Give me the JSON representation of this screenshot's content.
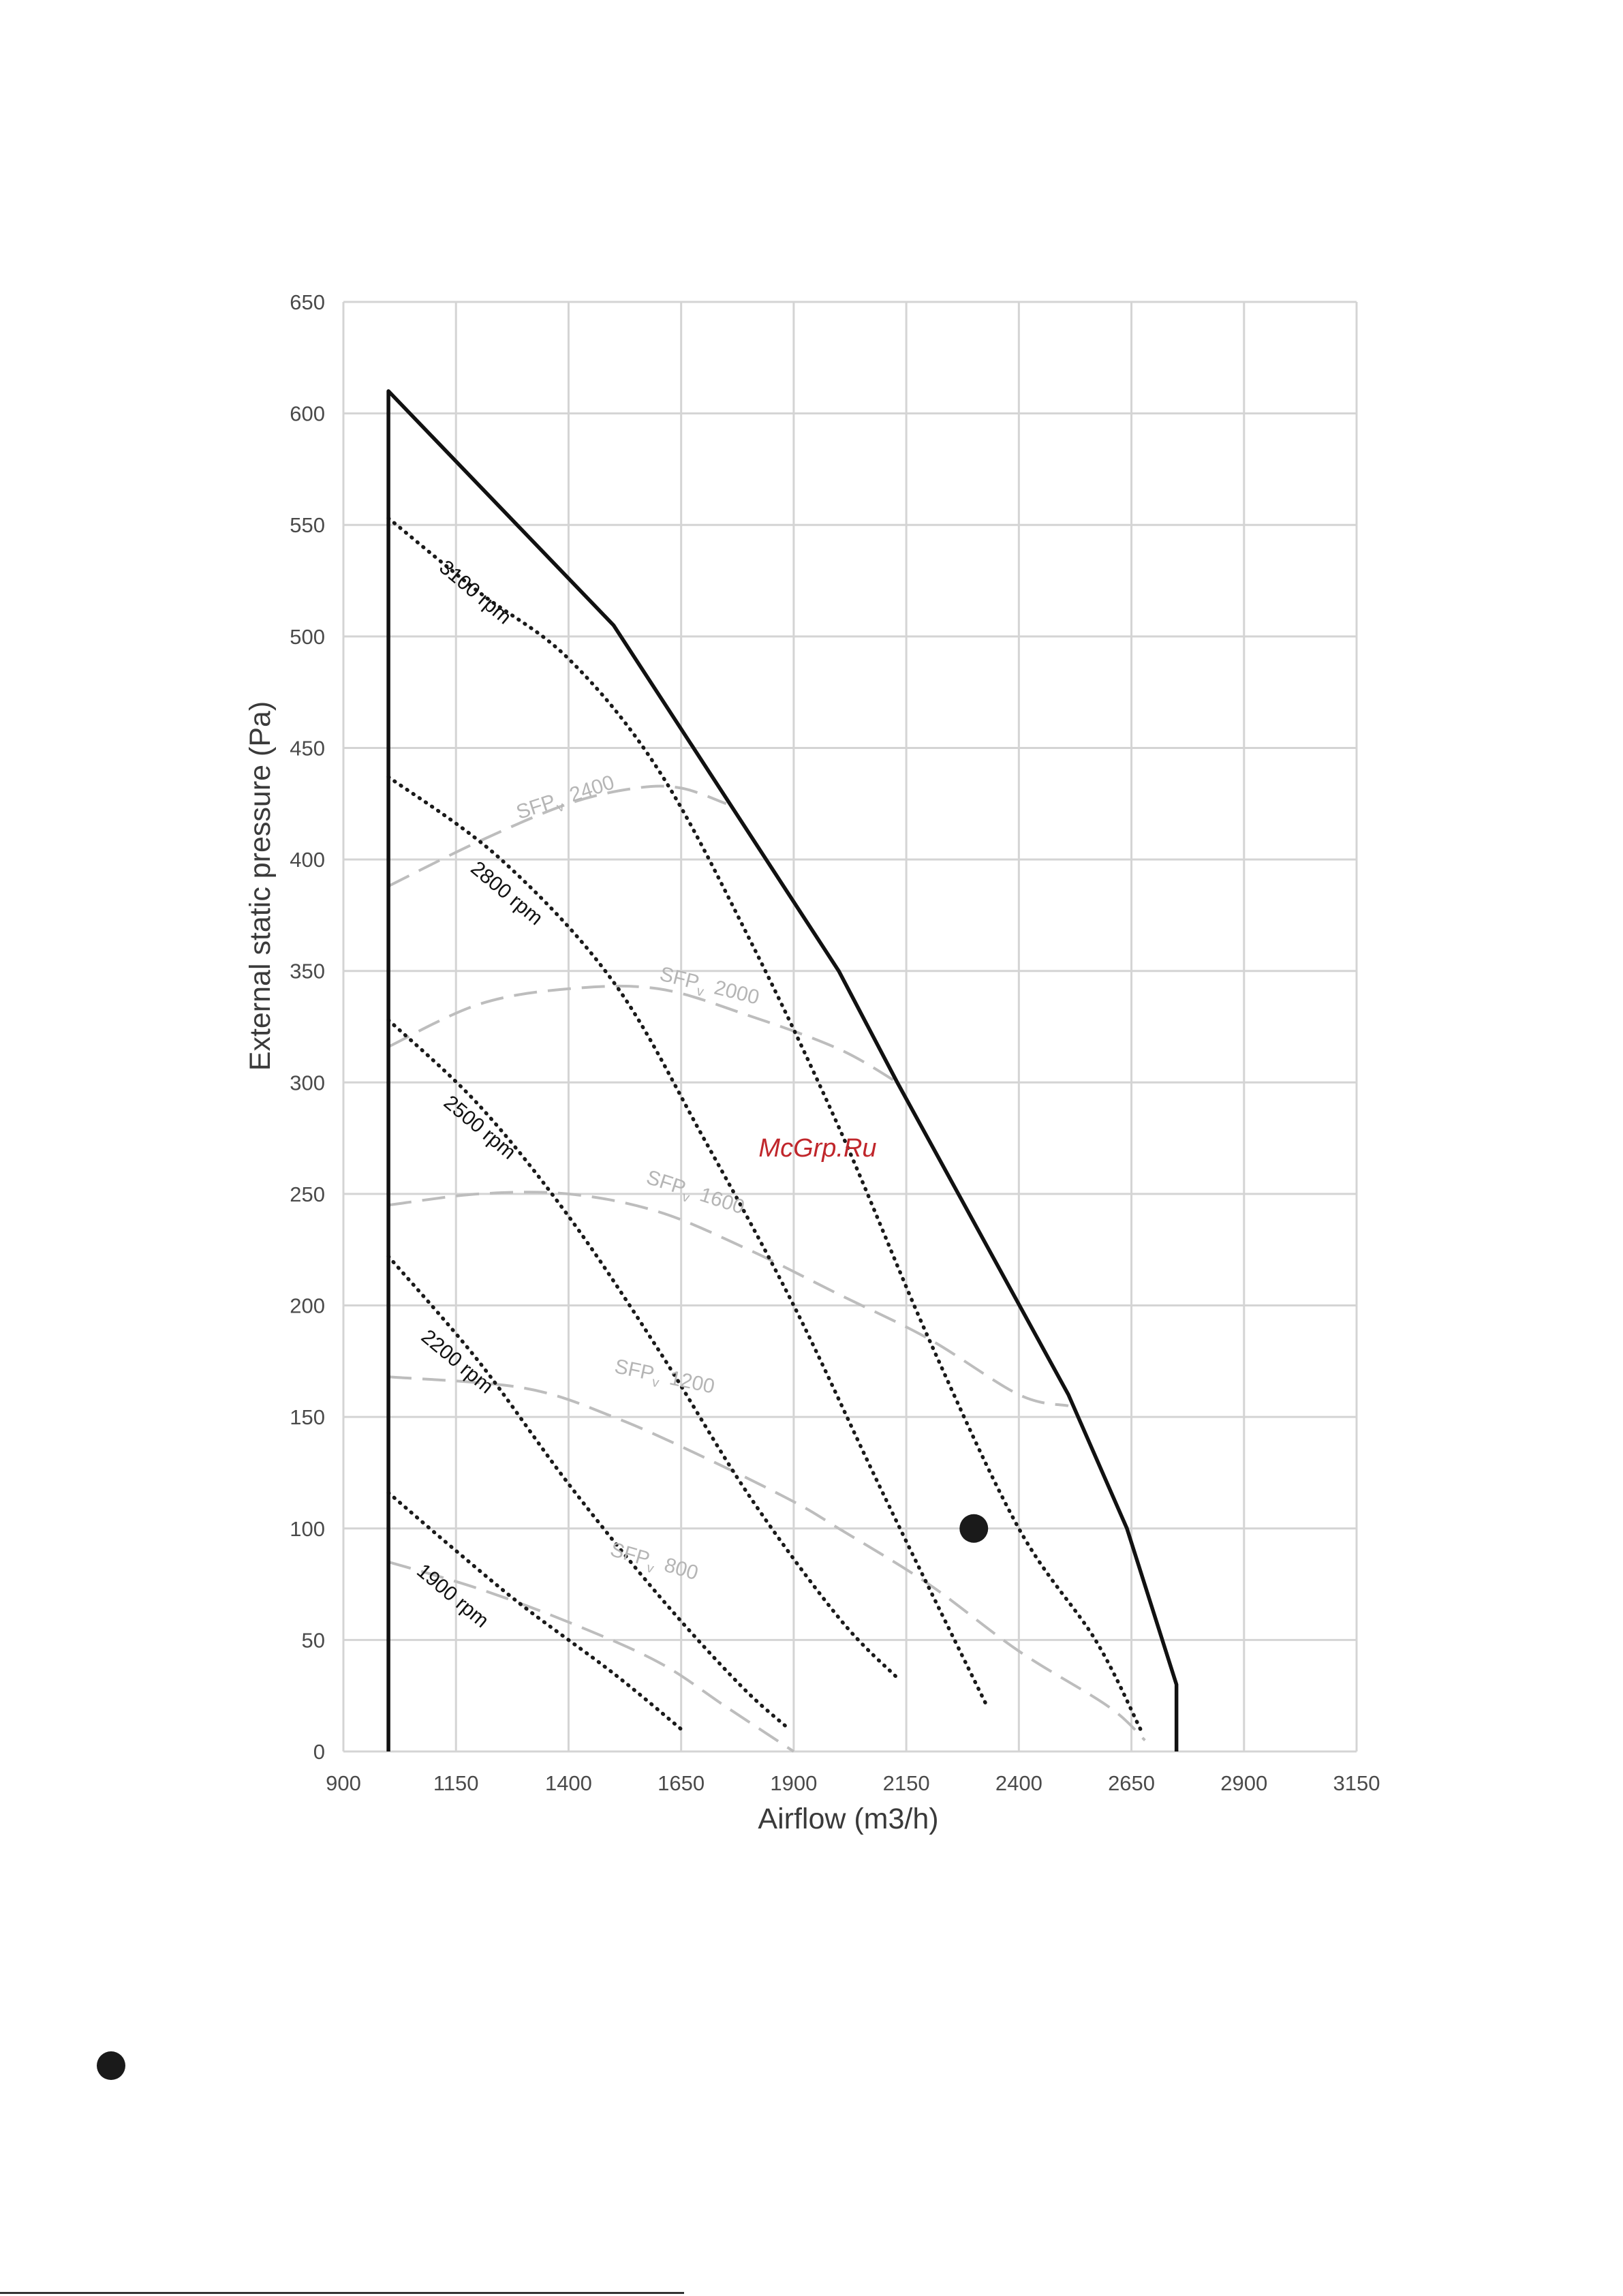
{
  "chart_data": {
    "type": "line",
    "xlabel": "Airflow (m3/h)",
    "ylabel": "External static pressure  (Pa)",
    "xlim": [
      900,
      3150
    ],
    "ylim": [
      0,
      650
    ],
    "x_ticks": [
      "900",
      "1150",
      "1400",
      "1650",
      "1900",
      "2150",
      "2400",
      "2650",
      "2900",
      "3150"
    ],
    "y_ticks": [
      "0",
      "50",
      "100",
      "150",
      "200",
      "250",
      "300",
      "350",
      "400",
      "450",
      "500",
      "550",
      "600",
      "650"
    ],
    "grid": true,
    "boundary": {
      "style": "solid",
      "points": [
        [
          1000,
          0
        ],
        [
          1000,
          610
        ],
        [
          1500,
          505
        ],
        [
          2000,
          350
        ],
        [
          2130,
          300
        ],
        [
          2510,
          160
        ],
        [
          2640,
          100
        ],
        [
          2750,
          30
        ],
        [
          2750,
          0
        ]
      ]
    },
    "rpm_series": [
      {
        "name": "3100 rpm",
        "style": "dotted",
        "points": [
          [
            1000,
            553
          ],
          [
            1200,
            520
          ],
          [
            1400,
            490
          ],
          [
            1600,
            440
          ],
          [
            1800,
            365
          ],
          [
            2000,
            280
          ],
          [
            2200,
            185
          ],
          [
            2400,
            100
          ],
          [
            2570,
            50
          ],
          [
            2670,
            10
          ]
        ]
      },
      {
        "name": "2800 rpm",
        "style": "dotted",
        "points": [
          [
            1000,
            437
          ],
          [
            1250,
            400
          ],
          [
            1500,
            345
          ],
          [
            1700,
            275
          ],
          [
            1900,
            200
          ],
          [
            2100,
            115
          ],
          [
            2330,
            20
          ]
        ]
      },
      {
        "name": "2500 rpm",
        "style": "dotted",
        "points": [
          [
            1000,
            328
          ],
          [
            1200,
            290
          ],
          [
            1400,
            240
          ],
          [
            1600,
            180
          ],
          [
            1800,
            115
          ],
          [
            2000,
            60
          ],
          [
            2130,
            33
          ]
        ]
      },
      {
        "name": "2200 rpm",
        "style": "dotted",
        "points": [
          [
            1000,
            222
          ],
          [
            1200,
            175
          ],
          [
            1400,
            120
          ],
          [
            1600,
            70
          ],
          [
            1780,
            30
          ],
          [
            1890,
            10
          ]
        ]
      },
      {
        "name": "1900 rpm",
        "style": "dotted",
        "points": [
          [
            1000,
            116
          ],
          [
            1150,
            90
          ],
          [
            1300,
            65
          ],
          [
            1500,
            35
          ],
          [
            1650,
            10
          ]
        ]
      }
    ],
    "sfp_series": [
      {
        "name": "SFP",
        "subscript": "v",
        "value": "2400",
        "style": "dashed",
        "points": [
          [
            1000,
            388
          ],
          [
            1200,
            408
          ],
          [
            1400,
            425
          ],
          [
            1550,
            432
          ],
          [
            1650,
            432
          ],
          [
            1750,
            425
          ]
        ]
      },
      {
        "name": "SFP",
        "subscript": "v",
        "value": "2000",
        "style": "dashed",
        "points": [
          [
            1000,
            316
          ],
          [
            1200,
            335
          ],
          [
            1400,
            342
          ],
          [
            1600,
            342
          ],
          [
            1800,
            330
          ],
          [
            2000,
            315
          ],
          [
            2130,
            300
          ]
        ]
      },
      {
        "name": "SFP",
        "subscript": "v",
        "value": "1600",
        "style": "dashed",
        "points": [
          [
            1000,
            245
          ],
          [
            1200,
            250
          ],
          [
            1400,
            250
          ],
          [
            1600,
            242
          ],
          [
            1800,
            225
          ],
          [
            2000,
            205
          ],
          [
            2200,
            185
          ],
          [
            2400,
            160
          ],
          [
            2510,
            155
          ]
        ]
      },
      {
        "name": "SFP",
        "subscript": "v",
        "value": "1200",
        "style": "dashed",
        "points": [
          [
            1000,
            168
          ],
          [
            1300,
            163
          ],
          [
            1500,
            150
          ],
          [
            1700,
            132
          ],
          [
            1900,
            112
          ],
          [
            2000,
            100
          ],
          [
            2200,
            75
          ],
          [
            2400,
            45
          ],
          [
            2600,
            20
          ],
          [
            2680,
            5
          ]
        ]
      },
      {
        "name": "SFP",
        "subscript": "v",
        "value": "800",
        "style": "dashed",
        "points": [
          [
            1000,
            85
          ],
          [
            1200,
            73
          ],
          [
            1400,
            58
          ],
          [
            1600,
            40
          ],
          [
            1750,
            20
          ],
          [
            1900,
            0
          ]
        ]
      }
    ],
    "operating_point": {
      "x": 2300,
      "y": 100
    },
    "watermark": "McGrp.Ru"
  }
}
